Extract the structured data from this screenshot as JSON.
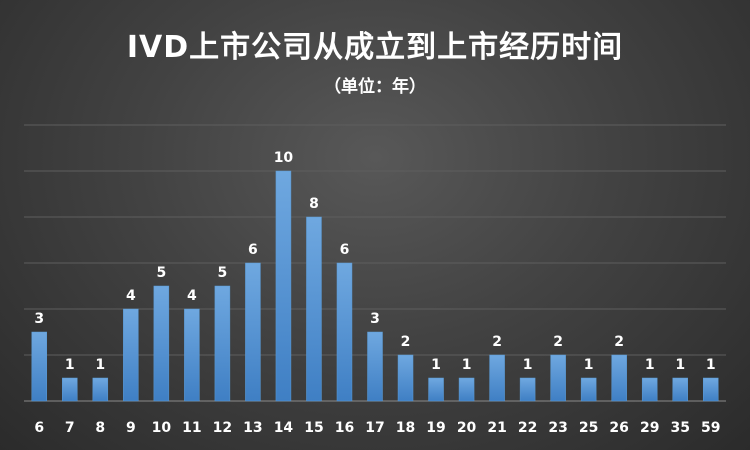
{
  "chart_data": {
    "type": "bar",
    "title": "IVD上市公司从成立到上市经历时间",
    "subtitle": "（单位：年）",
    "categories": [
      "6",
      "7",
      "8",
      "9",
      "10",
      "11",
      "12",
      "13",
      "14",
      "15",
      "16",
      "17",
      "18",
      "19",
      "20",
      "21",
      "22",
      "23",
      "25",
      "26",
      "29",
      "35",
      "59"
    ],
    "values": [
      3,
      1,
      1,
      4,
      5,
      4,
      5,
      6,
      10,
      8,
      6,
      3,
      2,
      1,
      1,
      2,
      1,
      2,
      1,
      2,
      1,
      1,
      1
    ],
    "xlabel": "",
    "ylabel": "",
    "ylim": [
      0,
      12
    ],
    "grid": true,
    "legend": "none",
    "bar_color": "#5b9bd5",
    "data_labels": true
  }
}
